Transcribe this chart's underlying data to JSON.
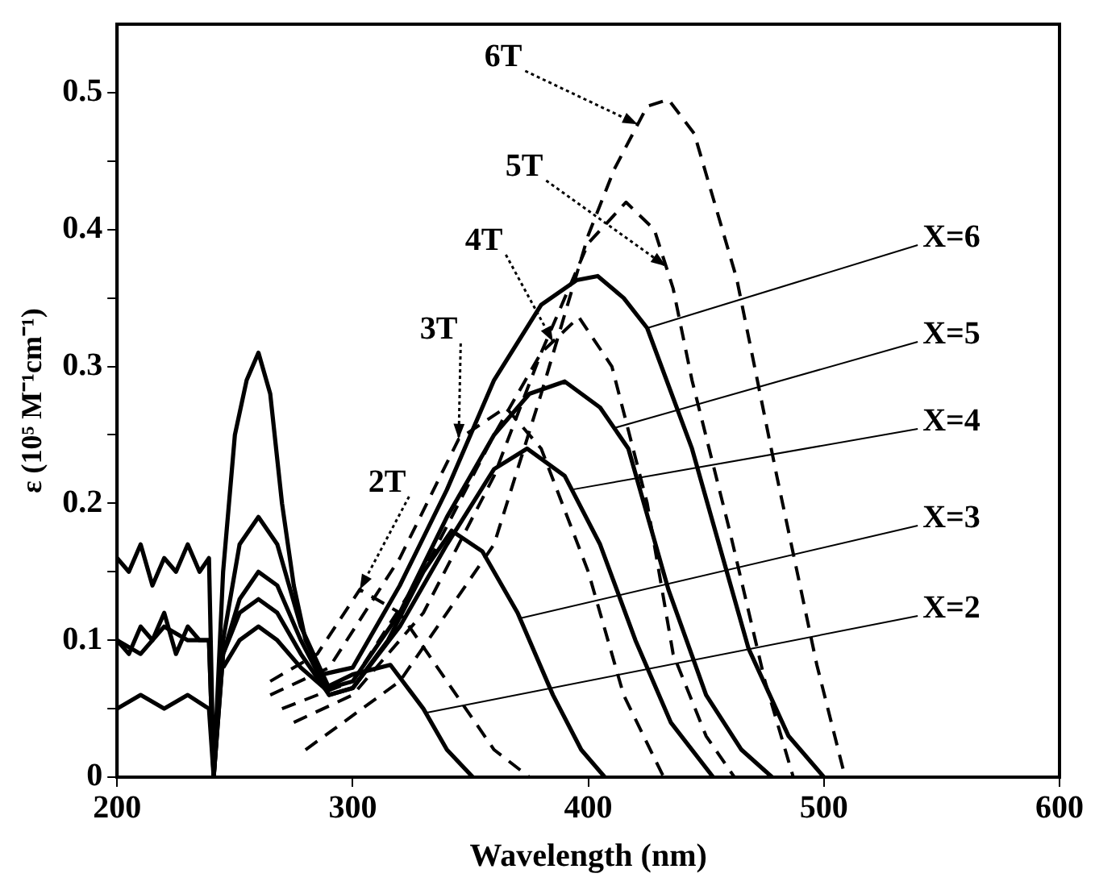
{
  "chart_data": {
    "type": "line",
    "xlabel": "Wavelength (nm)",
    "ylabel": "ε (10⁵ M⁻¹cm⁻¹)",
    "xlim": [
      200,
      600
    ],
    "xticks": [
      200,
      300,
      400,
      500,
      600
    ],
    "ylim": [
      0,
      0.55
    ],
    "yticks": [
      0,
      {
        "value": 0.05,
        "label": null
      },
      0.1,
      {
        "value": 0.15,
        "label": null
      },
      0.2,
      {
        "value": 0.25,
        "label": null
      },
      0.3,
      {
        "value": 0.35,
        "label": null
      },
      0.4,
      {
        "value": 0.45,
        "label": null
      },
      0.5
    ],
    "grid": false,
    "legend": false,
    "marker": "none",
    "series": [
      {
        "name": "X=2",
        "color": "#000000",
        "line_style": "solid",
        "x": [
          245,
          252,
          260,
          268,
          278,
          288,
          300,
          316,
          330,
          340,
          351
        ],
        "values": [
          0.08,
          0.1,
          0.11,
          0.1,
          0.08,
          0.065,
          0.075,
          0.082,
          0.05,
          0.02,
          0
        ]
      },
      {
        "name": "X=3",
        "color": "#000000",
        "line_style": "solid",
        "x": [
          200,
          210,
          220,
          230,
          239,
          241,
          245,
          252,
          260,
          268,
          278,
          290,
          300,
          315,
          330,
          342,
          355,
          370,
          385,
          397,
          407
        ],
        "values": [
          0.05,
          0.06,
          0.05,
          0.06,
          0.05,
          0,
          0.09,
          0.12,
          0.13,
          0.12,
          0.09,
          0.06,
          0.065,
          0.1,
          0.15,
          0.18,
          0.165,
          0.12,
          0.06,
          0.02,
          0
        ]
      },
      {
        "name": "X=4",
        "color": "#000000",
        "line_style": "solid",
        "x": [
          200,
          210,
          220,
          230,
          239,
          241,
          245,
          252,
          260,
          268,
          278,
          290,
          300,
          320,
          340,
          360,
          374,
          390,
          405,
          420,
          435,
          453
        ],
        "values": [
          0.1,
          0.09,
          0.11,
          0.1,
          0.1,
          0,
          0.09,
          0.13,
          0.15,
          0.14,
          0.1,
          0.06,
          0.065,
          0.11,
          0.17,
          0.225,
          0.24,
          0.22,
          0.17,
          0.1,
          0.04,
          0
        ]
      },
      {
        "name": "X=5",
        "color": "#000000",
        "line_style": "solid",
        "x": [
          200,
          205,
          210,
          215,
          220,
          225,
          230,
          235,
          239,
          241,
          245,
          252,
          260,
          268,
          278,
          290,
          300,
          320,
          340,
          360,
          375,
          390,
          405,
          417,
          434,
          450,
          465,
          478
        ],
        "values": [
          0.1,
          0.09,
          0.11,
          0.1,
          0.12,
          0.09,
          0.11,
          0.1,
          0.1,
          0,
          0.1,
          0.17,
          0.19,
          0.17,
          0.11,
          0.065,
          0.07,
          0.12,
          0.19,
          0.25,
          0.28,
          0.289,
          0.27,
          0.24,
          0.137,
          0.06,
          0.02,
          0
        ]
      },
      {
        "name": "X=6",
        "color": "#000000",
        "line_style": "solid",
        "x": [
          200,
          205,
          210,
          215,
          220,
          225,
          230,
          235,
          239,
          241,
          245,
          250,
          255,
          260,
          265,
          270,
          275,
          280,
          287,
          300,
          320,
          340,
          360,
          380,
          395,
          404,
          415,
          425,
          444,
          468,
          485,
          500
        ],
        "values": [
          0.16,
          0.15,
          0.17,
          0.14,
          0.16,
          0.15,
          0.17,
          0.15,
          0.16,
          0,
          0.15,
          0.25,
          0.29,
          0.31,
          0.28,
          0.2,
          0.14,
          0.1,
          0.075,
          0.08,
          0.14,
          0.21,
          0.29,
          0.345,
          0.363,
          0.366,
          0.35,
          0.328,
          0.24,
          0.094,
          0.03,
          0
        ]
      },
      {
        "name": "2T",
        "color": "#000000",
        "line_style": "dashed",
        "x": [
          265,
          285,
          303,
          320,
          340,
          360,
          375
        ],
        "values": [
          0.07,
          0.09,
          0.137,
          0.12,
          0.07,
          0.02,
          0
        ]
      },
      {
        "name": "3T",
        "color": "#000000",
        "line_style": "dashed",
        "x": [
          265,
          290,
          320,
          345,
          365,
          380,
          400,
          415,
          432
        ],
        "values": [
          0.06,
          0.08,
          0.16,
          0.247,
          0.27,
          0.24,
          0.15,
          0.06,
          0
        ]
      },
      {
        "name": "4T",
        "color": "#000000",
        "line_style": "dashed",
        "x": [
          270,
          300,
          330,
          360,
          380,
          396,
          410,
          425,
          436,
          450,
          462
        ],
        "values": [
          0.05,
          0.07,
          0.15,
          0.25,
          0.31,
          0.336,
          0.3,
          0.2,
          0.09,
          0.03,
          0
        ]
      },
      {
        "name": "5T",
        "color": "#000000",
        "line_style": "dashed",
        "x": [
          275,
          300,
          330,
          360,
          380,
          400,
          416,
          428,
          436,
          444,
          460,
          475,
          487
        ],
        "values": [
          0.04,
          0.06,
          0.12,
          0.22,
          0.31,
          0.39,
          0.42,
          0.4,
          0.357,
          0.29,
          0.18,
          0.07,
          0
        ]
      },
      {
        "name": "6T",
        "color": "#000000",
        "line_style": "dashed",
        "x": [
          280,
          320,
          360,
          380,
          400,
          411,
          425,
          434,
          445,
          463,
          480,
          497,
          509
        ],
        "values": [
          0.02,
          0.07,
          0.17,
          0.28,
          0.396,
          0.444,
          0.49,
          0.495,
          0.47,
          0.364,
          0.22,
          0.082,
          0
        ]
      }
    ]
  }
}
